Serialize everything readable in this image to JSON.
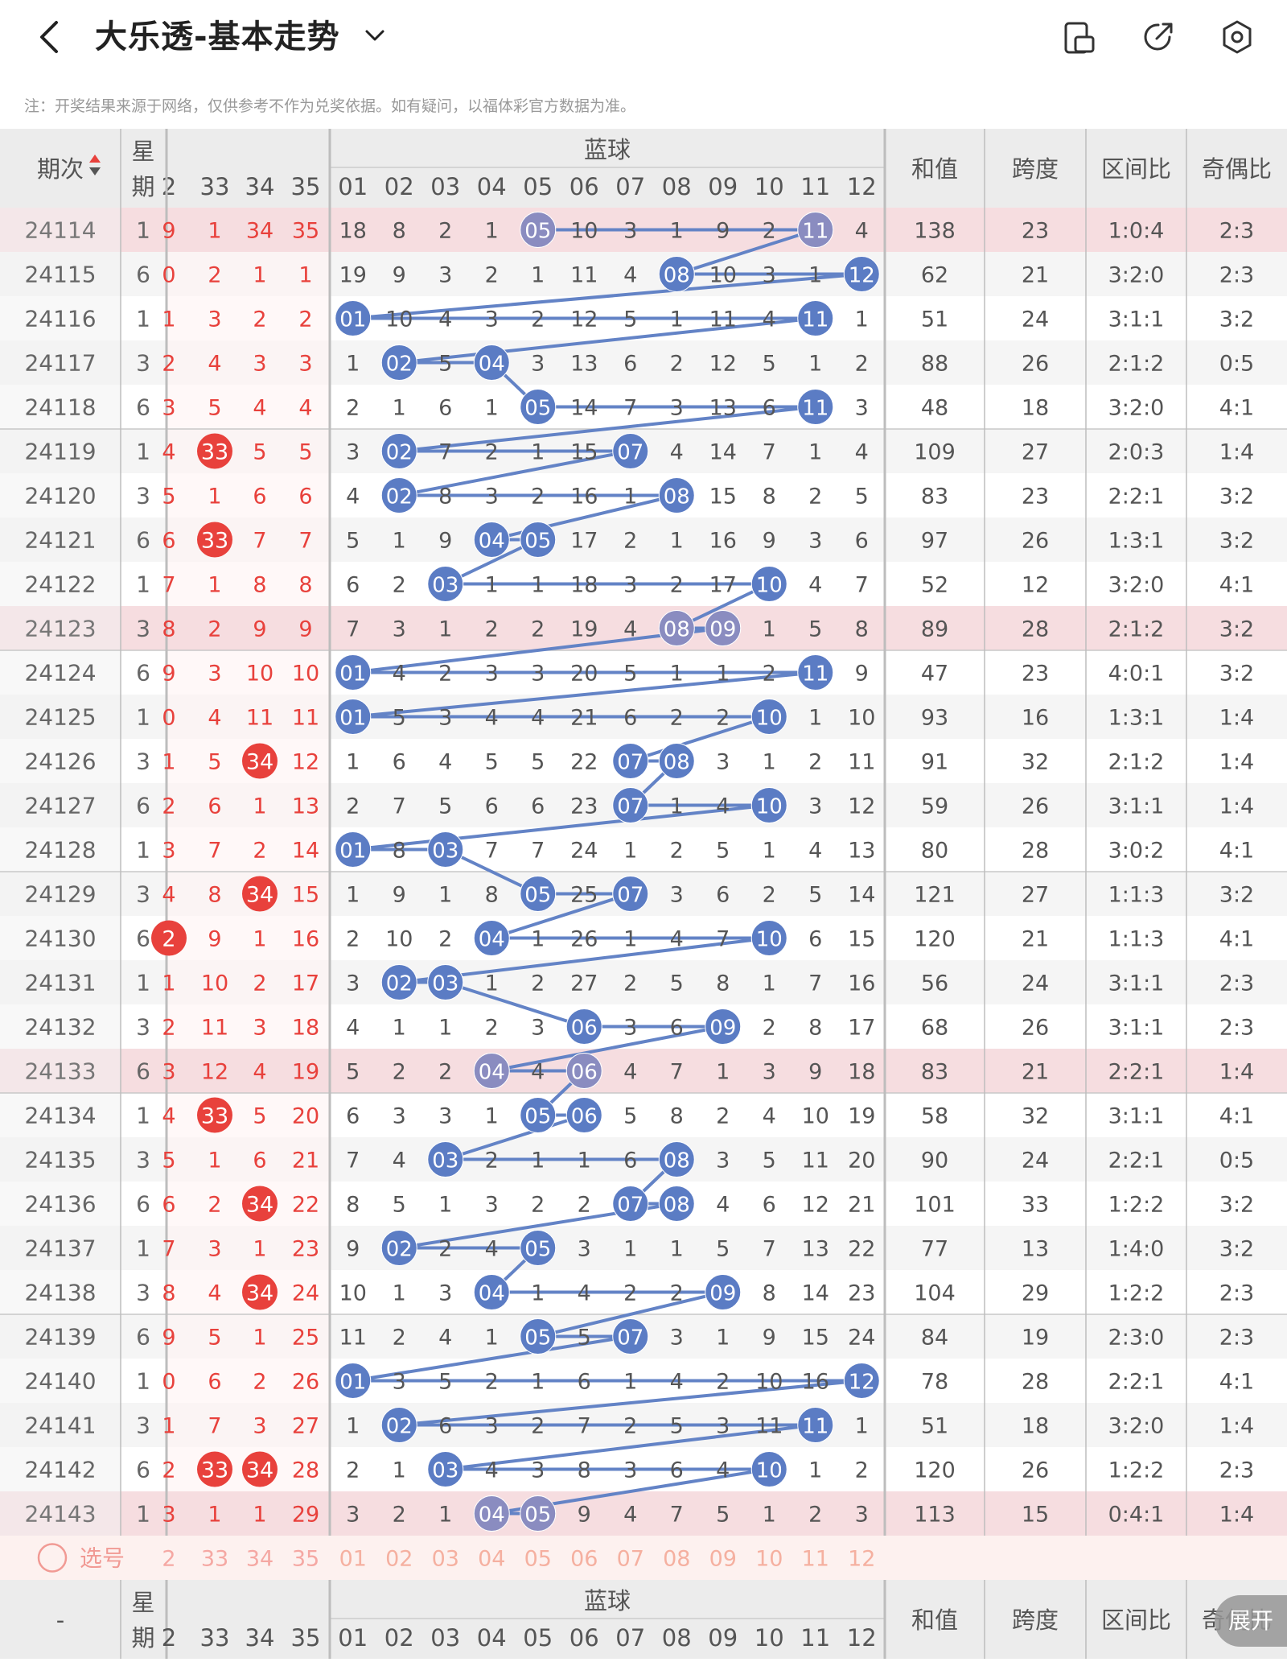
{
  "header": {
    "title": "大乐透-基本走势",
    "back_icon": "back-arrow-icon",
    "dropdown_icon": "chevron-down-icon",
    "actions": [
      {
        "name": "layout-toggle-icon"
      },
      {
        "name": "share-icon"
      },
      {
        "name": "settings-icon"
      }
    ]
  },
  "note": "注：开奖结果来源于网络，仅供参考不作为兑奖依据。如有疑问，以福体彩官方数据为准。",
  "table": {
    "period_header": "期次",
    "weekday_header_top": "星",
    "weekday_header_bottom": "期",
    "blue_group_header": "蓝球",
    "sum_header": "和值",
    "span_header": "跨度",
    "zone_header": "区间比",
    "odd_even_header": "奇偶比",
    "front_cols": [
      "2",
      "33",
      "34",
      "35"
    ],
    "blue_cols": [
      "01",
      "02",
      "03",
      "04",
      "05",
      "06",
      "07",
      "08",
      "09",
      "10",
      "11",
      "12"
    ],
    "rows": [
      {
        "p": "24114",
        "w": "1",
        "f": [
          "9",
          "1",
          "34",
          "35"
        ],
        "b": [
          "18",
          "8",
          "2",
          "1",
          "05",
          "10",
          "3",
          "1",
          "9",
          "2",
          "11",
          "4"
        ],
        "s": "138",
        "sp": "23",
        "z": "1:0:4",
        "o": "2:3",
        "h": true
      },
      {
        "p": "24115",
        "w": "6",
        "f": [
          "0",
          "2",
          "1",
          "1"
        ],
        "b": [
          "19",
          "9",
          "3",
          "2",
          "1",
          "11",
          "4",
          "08",
          "10",
          "3",
          "1",
          "12"
        ],
        "s": "62",
        "sp": "21",
        "z": "3:2:0",
        "o": "2:3"
      },
      {
        "p": "24116",
        "w": "1",
        "f": [
          "1",
          "3",
          "2",
          "2"
        ],
        "b": [
          "01",
          "10",
          "4",
          "3",
          "2",
          "12",
          "5",
          "1",
          "11",
          "4",
          "11",
          "1"
        ],
        "s": "51",
        "sp": "24",
        "z": "3:1:1",
        "o": "3:2"
      },
      {
        "p": "24117",
        "w": "3",
        "f": [
          "2",
          "4",
          "3",
          "3"
        ],
        "b": [
          "1",
          "02",
          "5",
          "04",
          "3",
          "13",
          "6",
          "2",
          "12",
          "5",
          "1",
          "2"
        ],
        "s": "88",
        "sp": "26",
        "z": "2:1:2",
        "o": "0:5"
      },
      {
        "p": "24118",
        "w": "6",
        "f": [
          "3",
          "5",
          "4",
          "4"
        ],
        "b": [
          "2",
          "1",
          "6",
          "1",
          "05",
          "14",
          "7",
          "3",
          "13",
          "6",
          "11",
          "3"
        ],
        "s": "48",
        "sp": "18",
        "z": "3:2:0",
        "o": "4:1"
      },
      {
        "p": "24119",
        "w": "1",
        "f": [
          "4",
          "33",
          "5",
          "5"
        ],
        "b": [
          "3",
          "02",
          "7",
          "2",
          "1",
          "15",
          "07",
          "4",
          "14",
          "7",
          "1",
          "4"
        ],
        "s": "109",
        "sp": "27",
        "z": "2:0:3",
        "o": "1:4"
      },
      {
        "p": "24120",
        "w": "3",
        "f": [
          "5",
          "1",
          "6",
          "6"
        ],
        "b": [
          "4",
          "02",
          "8",
          "3",
          "2",
          "16",
          "1",
          "08",
          "15",
          "8",
          "2",
          "5"
        ],
        "s": "83",
        "sp": "23",
        "z": "2:2:1",
        "o": "3:2"
      },
      {
        "p": "24121",
        "w": "6",
        "f": [
          "6",
          "33",
          "7",
          "7"
        ],
        "b": [
          "5",
          "1",
          "9",
          "04",
          "05",
          "17",
          "2",
          "1",
          "16",
          "9",
          "3",
          "6"
        ],
        "s": "97",
        "sp": "26",
        "z": "1:3:1",
        "o": "3:2"
      },
      {
        "p": "24122",
        "w": "1",
        "f": [
          "7",
          "1",
          "8",
          "8"
        ],
        "b": [
          "6",
          "2",
          "03",
          "1",
          "1",
          "18",
          "3",
          "2",
          "17",
          "10",
          "4",
          "7"
        ],
        "s": "52",
        "sp": "12",
        "z": "3:2:0",
        "o": "4:1"
      },
      {
        "p": "24123",
        "w": "3",
        "f": [
          "8",
          "2",
          "9",
          "9"
        ],
        "b": [
          "7",
          "3",
          "1",
          "2",
          "2",
          "19",
          "4",
          "08",
          "09",
          "1",
          "5",
          "8"
        ],
        "s": "89",
        "sp": "28",
        "z": "2:1:2",
        "o": "3:2",
        "h": true
      },
      {
        "p": "24124",
        "w": "6",
        "f": [
          "9",
          "3",
          "10",
          "10"
        ],
        "b": [
          "01",
          "4",
          "2",
          "3",
          "3",
          "20",
          "5",
          "1",
          "1",
          "2",
          "11",
          "9"
        ],
        "s": "47",
        "sp": "23",
        "z": "4:0:1",
        "o": "3:2"
      },
      {
        "p": "24125",
        "w": "1",
        "f": [
          "0",
          "4",
          "11",
          "11"
        ],
        "b": [
          "01",
          "5",
          "3",
          "4",
          "4",
          "21",
          "6",
          "2",
          "2",
          "10",
          "1",
          "10"
        ],
        "s": "93",
        "sp": "16",
        "z": "1:3:1",
        "o": "1:4"
      },
      {
        "p": "24126",
        "w": "3",
        "f": [
          "1",
          "5",
          "34",
          "12"
        ],
        "b": [
          "1",
          "6",
          "4",
          "5",
          "5",
          "22",
          "07",
          "08",
          "3",
          "1",
          "2",
          "11"
        ],
        "s": "91",
        "sp": "32",
        "z": "2:1:2",
        "o": "1:4"
      },
      {
        "p": "24127",
        "w": "6",
        "f": [
          "2",
          "6",
          "1",
          "13"
        ],
        "b": [
          "2",
          "7",
          "5",
          "6",
          "6",
          "23",
          "07",
          "1",
          "4",
          "10",
          "3",
          "12"
        ],
        "s": "59",
        "sp": "26",
        "z": "3:1:1",
        "o": "1:4"
      },
      {
        "p": "24128",
        "w": "1",
        "f": [
          "3",
          "7",
          "2",
          "14"
        ],
        "b": [
          "01",
          "8",
          "03",
          "7",
          "7",
          "24",
          "1",
          "2",
          "5",
          "1",
          "4",
          "13"
        ],
        "s": "80",
        "sp": "28",
        "z": "3:0:2",
        "o": "4:1"
      },
      {
        "p": "24129",
        "w": "3",
        "f": [
          "4",
          "8",
          "34",
          "15"
        ],
        "b": [
          "1",
          "9",
          "1",
          "8",
          "05",
          "25",
          "07",
          "3",
          "6",
          "2",
          "5",
          "14"
        ],
        "s": "121",
        "sp": "27",
        "z": "1:1:3",
        "o": "3:2"
      },
      {
        "p": "24130",
        "w": "6",
        "f": [
          "2",
          "9",
          "1",
          "16"
        ],
        "b": [
          "2",
          "10",
          "2",
          "04",
          "1",
          "26",
          "1",
          "4",
          "7",
          "10",
          "6",
          "15"
        ],
        "s": "120",
        "sp": "21",
        "z": "1:1:3",
        "o": "4:1"
      },
      {
        "p": "24131",
        "w": "1",
        "f": [
          "1",
          "10",
          "2",
          "17"
        ],
        "b": [
          "3",
          "02",
          "03",
          "1",
          "2",
          "27",
          "2",
          "5",
          "8",
          "1",
          "7",
          "16"
        ],
        "s": "56",
        "sp": "24",
        "z": "3:1:1",
        "o": "2:3"
      },
      {
        "p": "24132",
        "w": "3",
        "f": [
          "2",
          "11",
          "3",
          "18"
        ],
        "b": [
          "4",
          "1",
          "1",
          "2",
          "3",
          "06",
          "3",
          "6",
          "09",
          "2",
          "8",
          "17"
        ],
        "s": "68",
        "sp": "26",
        "z": "3:1:1",
        "o": "2:3"
      },
      {
        "p": "24133",
        "w": "6",
        "f": [
          "3",
          "12",
          "4",
          "19"
        ],
        "b": [
          "5",
          "2",
          "2",
          "04",
          "4",
          "06",
          "4",
          "7",
          "1",
          "3",
          "9",
          "18"
        ],
        "s": "83",
        "sp": "21",
        "z": "2:2:1",
        "o": "1:4",
        "h": true
      },
      {
        "p": "24134",
        "w": "1",
        "f": [
          "4",
          "33",
          "5",
          "20"
        ],
        "b": [
          "6",
          "3",
          "3",
          "1",
          "05",
          "06",
          "5",
          "8",
          "2",
          "4",
          "10",
          "19"
        ],
        "s": "58",
        "sp": "32",
        "z": "3:1:1",
        "o": "4:1"
      },
      {
        "p": "24135",
        "w": "3",
        "f": [
          "5",
          "1",
          "6",
          "21"
        ],
        "b": [
          "7",
          "4",
          "03",
          "2",
          "1",
          "1",
          "6",
          "08",
          "3",
          "5",
          "11",
          "20"
        ],
        "s": "90",
        "sp": "24",
        "z": "2:2:1",
        "o": "0:5"
      },
      {
        "p": "24136",
        "w": "6",
        "f": [
          "6",
          "2",
          "34",
          "22"
        ],
        "b": [
          "8",
          "5",
          "1",
          "3",
          "2",
          "2",
          "07",
          "08",
          "4",
          "6",
          "12",
          "21"
        ],
        "s": "101",
        "sp": "33",
        "z": "1:2:2",
        "o": "3:2"
      },
      {
        "p": "24137",
        "w": "1",
        "f": [
          "7",
          "3",
          "1",
          "23"
        ],
        "b": [
          "9",
          "02",
          "2",
          "4",
          "05",
          "3",
          "1",
          "1",
          "5",
          "7",
          "13",
          "22"
        ],
        "s": "77",
        "sp": "13",
        "z": "1:4:0",
        "o": "3:2"
      },
      {
        "p": "24138",
        "w": "3",
        "f": [
          "8",
          "4",
          "34",
          "24"
        ],
        "b": [
          "10",
          "1",
          "3",
          "04",
          "1",
          "4",
          "2",
          "2",
          "09",
          "8",
          "14",
          "23"
        ],
        "s": "104",
        "sp": "29",
        "z": "1:2:2",
        "o": "2:3"
      },
      {
        "p": "24139",
        "w": "6",
        "f": [
          "9",
          "5",
          "1",
          "25"
        ],
        "b": [
          "11",
          "2",
          "4",
          "1",
          "05",
          "5",
          "07",
          "3",
          "1",
          "9",
          "15",
          "24"
        ],
        "s": "84",
        "sp": "19",
        "z": "2:3:0",
        "o": "2:3"
      },
      {
        "p": "24140",
        "w": "1",
        "f": [
          "0",
          "6",
          "2",
          "26"
        ],
        "b": [
          "01",
          "3",
          "5",
          "2",
          "1",
          "6",
          "1",
          "4",
          "2",
          "10",
          "16",
          "12"
        ],
        "s": "78",
        "sp": "28",
        "z": "2:2:1",
        "o": "4:1"
      },
      {
        "p": "24141",
        "w": "3",
        "f": [
          "1",
          "7",
          "3",
          "27"
        ],
        "b": [
          "1",
          "02",
          "6",
          "3",
          "2",
          "7",
          "2",
          "5",
          "3",
          "11",
          "11",
          "1"
        ],
        "s": "51",
        "sp": "18",
        "z": "3:2:0",
        "o": "1:4"
      },
      {
        "p": "24142",
        "w": "6",
        "f": [
          "2",
          "33",
          "34",
          "28"
        ],
        "b": [
          "2",
          "1",
          "03",
          "4",
          "3",
          "8",
          "3",
          "6",
          "4",
          "10",
          "1",
          "2"
        ],
        "s": "120",
        "sp": "26",
        "z": "1:2:2",
        "o": "2:3"
      },
      {
        "p": "24143",
        "w": "1",
        "f": [
          "3",
          "1",
          "1",
          "29"
        ],
        "b": [
          "3",
          "2",
          "1",
          "04",
          "05",
          "9",
          "4",
          "7",
          "5",
          "1",
          "2",
          "3"
        ],
        "s": "113",
        "sp": "15",
        "z": "0:4:1",
        "o": "1:4",
        "h": true
      }
    ],
    "hit_blue": [
      [
        4,
        10
      ],
      [
        7,
        11
      ],
      [
        0,
        10
      ],
      [
        1,
        3
      ],
      [
        4,
        10
      ],
      [
        1,
        6
      ],
      [
        1,
        7
      ],
      [
        3,
        4
      ],
      [
        2,
        9
      ],
      [
        7,
        8
      ],
      [
        0,
        10
      ],
      [
        0,
        9
      ],
      [
        6,
        7
      ],
      [
        6,
        9
      ],
      [
        0,
        2
      ],
      [
        4,
        6
      ],
      [
        3,
        9
      ],
      [
        1,
        2
      ],
      [
        5,
        8
      ],
      [
        3,
        5
      ],
      [
        4,
        5
      ],
      [
        2,
        7
      ],
      [
        6,
        7
      ],
      [
        1,
        4
      ],
      [
        3,
        8
      ],
      [
        4,
        6
      ],
      [
        0,
        11
      ],
      [
        1,
        10
      ],
      [
        2,
        9
      ],
      [
        3,
        4
      ]
    ],
    "hit_front": [
      [],
      [],
      [],
      [],
      [],
      [
        1
      ],
      [],
      [
        1
      ],
      [],
      [],
      [],
      [],
      [
        2
      ],
      [],
      [],
      [
        2
      ],
      [
        0
      ],
      [],
      [],
      [],
      [
        1
      ],
      [],
      [
        2
      ],
      [],
      [
        2
      ],
      [],
      [],
      [],
      [
        1,
        2
      ],
      []
    ],
    "select_row": {
      "label": "选号"
    },
    "footer": {
      "period_header": "-",
      "weekday_top": "星",
      "weekday_bottom": "期"
    }
  },
  "expand_button": "展开",
  "colors": {
    "front_red": "#e8413c",
    "blue_ball": "#5b7cc4",
    "highlight_row": "#f6dde0",
    "line": "#6383c6"
  }
}
